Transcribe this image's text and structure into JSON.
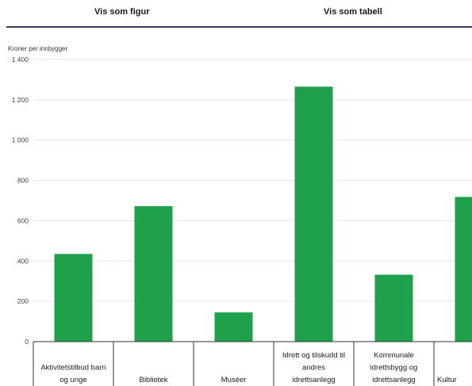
{
  "tabs": [
    {
      "label": "Vis som figur"
    },
    {
      "label": "Vis som tabell"
    }
  ],
  "colors": {
    "bar": "#1fa04a",
    "grid": "#e6e6e6",
    "axis": "#333333",
    "tab_underline": "#2d3e50"
  },
  "chart_data": {
    "type": "bar",
    "ylabel": "Kroner per innbygger",
    "ylim": [
      0,
      1400
    ],
    "yticks": [
      0,
      200,
      400,
      600,
      800,
      1000,
      1200,
      1400
    ],
    "ytick_labels": [
      "0",
      "200",
      "400",
      "600",
      "800",
      "1 000",
      "1 200",
      "1 400"
    ],
    "grid": true,
    "categories": [
      [
        "Aktivitetstilbud barn",
        "og unge"
      ],
      [
        "Bibliotek"
      ],
      [
        "Muséer"
      ],
      [
        "Idrett og tilskudd til",
        "andres",
        "idrettsanlegg"
      ],
      [
        "Kommunale",
        "idrettsbygg og",
        "idrettsanlegg"
      ],
      [
        "Kultur"
      ]
    ],
    "values": [
      435,
      672,
      145,
      1265,
      332,
      718
    ]
  }
}
